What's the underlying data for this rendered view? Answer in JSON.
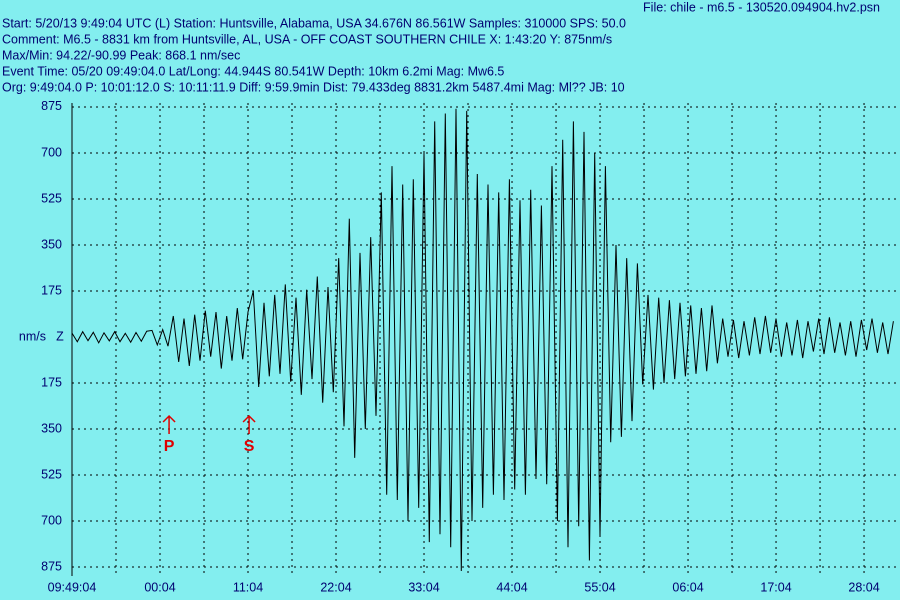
{
  "chart_data": {
    "type": "line",
    "file": "File: chile - m6.5 - 130520.094904.hv2.psn",
    "header_lines": [
      "Start: 5/20/13  9:49:04 UTC (L) Station: Huntsville, Alabama, USA 34.676N 86.561W Samples: 310000  SPS: 50.0",
      "Comment: M6.5 - 8831 km from Huntsville, AL, USA - OFF COAST SOUTHERN CHILE   X: 1:43:20 Y: 875nm/s",
      "Max/Min: 94.22/-90.99  Peak: 868.1 nm/sec",
      "Event Time: 05/20 09:49:04.0 Lat/Long: 44.944S 80.541W Depth: 10km 6.2mi Mag: Mw6.5",
      "Org: 9:49:04.0 P: 10:01:12.0 S: 10:11:11.9 Diff: 9:59.9min Dist: 79.433deg 8831.2km 5487.4mi  Mag: Ml?? JB: 10"
    ],
    "y_label": "nm/s",
    "component": "Z",
    "xlim": [
      0,
      6200
    ],
    "xticks": [
      {
        "value": 0,
        "label": "09:49:04"
      },
      {
        "value": 660,
        "label": "00:04"
      },
      {
        "value": 1320,
        "label": "11:04"
      },
      {
        "value": 1980,
        "label": "22:04"
      },
      {
        "value": 2640,
        "label": "33:04"
      },
      {
        "value": 3300,
        "label": "44:04"
      },
      {
        "value": 3960,
        "label": "55:04"
      },
      {
        "value": 4620,
        "label": "06:04"
      },
      {
        "value": 5280,
        "label": "17:04"
      },
      {
        "value": 5940,
        "label": "28:04"
      }
    ],
    "minor_xticks": [
      330,
      990,
      1650,
      2310,
      2970,
      3630,
      4290,
      4950,
      5610
    ],
    "ylim": [
      -890,
      890
    ],
    "yticks": [
      875,
      700,
      525,
      350,
      175,
      {
        "value": -175,
        "label": "175"
      },
      {
        "value": -350,
        "label": "350"
      },
      {
        "value": -525,
        "label": "525"
      },
      {
        "value": -700,
        "label": "700"
      },
      {
        "value": -875,
        "label": "875"
      }
    ],
    "grid": true,
    "annotations": [
      {
        "text": "P",
        "x": 728
      },
      {
        "text": "S",
        "x": 1328
      }
    ],
    "x": [
      0,
      40,
      80,
      120,
      160,
      200,
      240,
      280,
      320,
      360,
      400,
      440,
      480,
      520,
      560,
      600,
      640,
      680,
      720,
      760,
      800,
      840,
      880,
      920,
      960,
      1000,
      1040,
      1080,
      1120,
      1160,
      1200,
      1240,
      1280,
      1320,
      1360,
      1400,
      1440,
      1480,
      1520,
      1560,
      1600,
      1640,
      1680,
      1720,
      1760,
      1800,
      1840,
      1880,
      1920,
      1960,
      2000,
      2040,
      2080,
      2120,
      2160,
      2200,
      2240,
      2280,
      2320,
      2360,
      2400,
      2440,
      2480,
      2520,
      2560,
      2600,
      2640,
      2680,
      2720,
      2760,
      2800,
      2840,
      2880,
      2920,
      2960,
      3000,
      3040,
      3080,
      3120,
      3160,
      3200,
      3240,
      3280,
      3320,
      3360,
      3400,
      3440,
      3480,
      3520,
      3560,
      3600,
      3640,
      3680,
      3720,
      3760,
      3800,
      3840,
      3880,
      3920,
      3960,
      4000,
      4040,
      4080,
      4120,
      4160,
      4200,
      4240,
      4280,
      4320,
      4360,
      4400,
      4440,
      4480,
      4520,
      4560,
      4600,
      4640,
      4680,
      4720,
      4760,
      4800,
      4840,
      4880,
      4920,
      4960,
      5000,
      5040,
      5080,
      5120,
      5160,
      5200,
      5240,
      5280,
      5320,
      5360,
      5400,
      5440,
      5480,
      5520,
      5560,
      5600,
      5640,
      5680,
      5720,
      5760,
      5800,
      5840,
      5880,
      5920,
      5960,
      6000,
      6040,
      6080,
      6120,
      6160
    ],
    "series": [
      {
        "color": "#000000",
        "values": [
          15,
          -18,
          20,
          -14,
          18,
          -22,
          16,
          -15,
          20,
          -18,
          14,
          -20,
          17,
          -16,
          22,
          25,
          -30,
          28,
          -35,
          80,
          -95,
          70,
          -110,
          85,
          -90,
          100,
          -75,
          95,
          -120,
          80,
          -90,
          110,
          -85,
          95,
          175,
          -190,
          130,
          -150,
          160,
          -140,
          200,
          -170,
          150,
          -220,
          180,
          -160,
          230,
          -250,
          190,
          -210,
          300,
          -340,
          450,
          -460,
          320,
          -350,
          380,
          -300,
          550,
          -600,
          650,
          -620,
          580,
          -700,
          600,
          -650,
          700,
          -780,
          820,
          -750,
          850,
          -800,
          868,
          -890,
          860,
          -700,
          620,
          -650,
          580,
          -600,
          550,
          -620,
          600,
          -580,
          520,
          -600,
          560,
          -540,
          500,
          -560,
          650,
          -700,
          750,
          -800,
          820,
          -720,
          780,
          -850,
          700,
          -760,
          650,
          -400,
          350,
          -380,
          300,
          -320,
          280,
          -180,
          160,
          -200,
          150,
          -175,
          140,
          -160,
          130,
          -150,
          120,
          -140,
          110,
          -130,
          120,
          -100,
          70,
          -75,
          65,
          -80,
          60,
          -70,
          75,
          -65,
          80,
          -60,
          70,
          -75,
          55,
          -70,
          65,
          -80,
          60,
          -55,
          70,
          -65,
          75,
          -60,
          55,
          -70,
          60,
          -75,
          65,
          -50,
          70,
          -60,
          55,
          -65,
          60
        ]
      }
    ]
  }
}
